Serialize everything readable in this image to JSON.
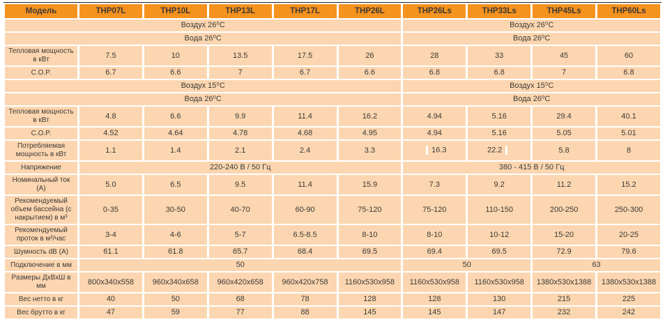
{
  "colors": {
    "header_bg": "#F6921E",
    "cell_bg": "#FBD6B0",
    "text": "#3D3935",
    "grid_gap": "#FFFFFF",
    "top_rule": "#2A241F"
  },
  "table": {
    "columns": [
      "Модель",
      "THP07L",
      "THP10L",
      "THP13L",
      "THP17L",
      "THP26L",
      "THP26Ls",
      "THP33Ls",
      "THP45Ls",
      "THP60Ls"
    ],
    "rows": [
      {
        "name": "air-26-condition",
        "cells": [
          {
            "text": "Воздух 26⁰С",
            "colspan": 6
          },
          {
            "text": "Воздух 26⁰С",
            "colspan": 4
          }
        ]
      },
      {
        "name": "water-26-condition",
        "cells": [
          {
            "text": "Вода 26⁰С",
            "colspan": 6
          },
          {
            "text": "Вода 26⁰С",
            "colspan": 4
          }
        ]
      },
      {
        "name": "heat-output-26",
        "cells": [
          {
            "text": "Тепловая мощность в кВт",
            "is_label": true
          },
          {
            "text": "7.5"
          },
          {
            "text": "10"
          },
          {
            "text": "13.5"
          },
          {
            "text": "17.5"
          },
          {
            "text": "26"
          },
          {
            "text": "28"
          },
          {
            "text": "33"
          },
          {
            "text": "45"
          },
          {
            "text": "60"
          }
        ]
      },
      {
        "name": "cop-26",
        "cells": [
          {
            "text": "C.O.P.",
            "is_label": true
          },
          {
            "text": "6.7"
          },
          {
            "text": "6.6"
          },
          {
            "text": "7"
          },
          {
            "text": "6.7"
          },
          {
            "text": "6.6"
          },
          {
            "text": "6.8"
          },
          {
            "text": "6.8"
          },
          {
            "text": "7"
          },
          {
            "text": "6.8"
          }
        ]
      },
      {
        "name": "air-15-condition",
        "cells": [
          {
            "text": "Воздух 15⁰С",
            "colspan": 6
          },
          {
            "text": "Воздух 15⁰С",
            "colspan": 4
          }
        ]
      },
      {
        "name": "water-26-condition-2",
        "cells": [
          {
            "text": "Вода 26⁰С",
            "colspan": 6
          },
          {
            "text": "Вода 26⁰С",
            "colspan": 4
          }
        ]
      },
      {
        "name": "heat-output-15",
        "cells": [
          {
            "text": "Тепловая мощность в кВт",
            "is_label": true
          },
          {
            "text": "4.8"
          },
          {
            "text": "6.6"
          },
          {
            "text": "9.9"
          },
          {
            "text": "11.4"
          },
          {
            "text": "16.2"
          },
          {
            "text": "4.94"
          },
          {
            "text": "5.16"
          },
          {
            "text": "29.4"
          },
          {
            "text": "40.1"
          }
        ]
      },
      {
        "name": "cop-15",
        "cells": [
          {
            "text": "C.O.P.",
            "is_label": true
          },
          {
            "text": "4.52"
          },
          {
            "text": "4.64"
          },
          {
            "text": "4.78"
          },
          {
            "text": "4.68"
          },
          {
            "text": "4.95"
          },
          {
            "text": "4.94"
          },
          {
            "text": "5.16"
          },
          {
            "text": "5.05"
          },
          {
            "text": "5.01"
          }
        ]
      },
      {
        "name": "power-consumption",
        "cells": [
          {
            "text": "Потребляемая мощность в кВт",
            "is_label": true
          },
          {
            "text": "1.1"
          },
          {
            "text": "1.4"
          },
          {
            "text": "2.1"
          },
          {
            "text": "2.4"
          },
          {
            "text": "3.3"
          },
          {
            "text": "16.3",
            "mark": "before"
          },
          {
            "text": "22.2",
            "mark": "after"
          },
          {
            "text": "5.8"
          },
          {
            "text": "8"
          }
        ]
      },
      {
        "name": "voltage",
        "cells": [
          {
            "text": "Напряжение",
            "is_label": true
          },
          {
            "text": "220-240 В / 50 Гц",
            "colspan": 5
          },
          {
            "text": "380 - 415 В / 50 Гц",
            "colspan": 4
          }
        ]
      },
      {
        "name": "nominal-current",
        "cells": [
          {
            "text": "Номинальный ток (А)",
            "is_label": true
          },
          {
            "text": "5.0"
          },
          {
            "text": "6.5"
          },
          {
            "text": "9.5"
          },
          {
            "text": "11.4"
          },
          {
            "text": "15.9"
          },
          {
            "text": "7.3"
          },
          {
            "text": "9.2"
          },
          {
            "text": "11.2"
          },
          {
            "text": "15.2"
          }
        ]
      },
      {
        "name": "pool-volume",
        "cells": [
          {
            "text": "Рекомендуемый объем бассейна (с накрытием) в м³",
            "is_label": true
          },
          {
            "text": "0-35"
          },
          {
            "text": "30-50"
          },
          {
            "text": "40-70"
          },
          {
            "text": "60-90"
          },
          {
            "text": "75-120"
          },
          {
            "text": "75-120"
          },
          {
            "text": "110-150"
          },
          {
            "text": "200-250"
          },
          {
            "text": "250-300"
          }
        ]
      },
      {
        "name": "flow-rate",
        "cells": [
          {
            "text": "Рекомендуемый проток в м³/час",
            "is_label": true
          },
          {
            "text": "3-4"
          },
          {
            "text": "4-6"
          },
          {
            "text": "5-7"
          },
          {
            "text": "6.5-8.5"
          },
          {
            "text": "8-10"
          },
          {
            "text": "8-10"
          },
          {
            "text": "10-12"
          },
          {
            "text": "15-20"
          },
          {
            "text": "20-25"
          }
        ]
      },
      {
        "name": "noise-level",
        "cells": [
          {
            "text": "Шумность dB (А)",
            "is_label": true
          },
          {
            "text": "61.1"
          },
          {
            "text": "61.8"
          },
          {
            "text": "65.7"
          },
          {
            "text": "68.4"
          },
          {
            "text": "69.5"
          },
          {
            "text": "69.4"
          },
          {
            "text": "69.5"
          },
          {
            "text": "72.9"
          },
          {
            "text": "79.6"
          }
        ]
      },
      {
        "name": "connection-size",
        "cells": [
          {
            "text": "Подключение в мм",
            "is_label": true
          },
          {
            "text": "50",
            "colspan": 5
          },
          {
            "text": "50",
            "colspan": 2
          },
          {
            "text": "63",
            "colspan": 2
          }
        ]
      },
      {
        "name": "dimensions",
        "cells": [
          {
            "text": "Размеры ДхВхШ в мм",
            "is_label": true
          },
          {
            "text": "800x340x558"
          },
          {
            "text": "960x340x658"
          },
          {
            "text": "960x420x658"
          },
          {
            "text": "960x420x758"
          },
          {
            "text": "1160x530x958"
          },
          {
            "text": "1160x530x958"
          },
          {
            "text": "1160x530x958"
          },
          {
            "text": "1380x530x1388"
          },
          {
            "text": "1380x530x1388"
          }
        ]
      },
      {
        "name": "net-weight",
        "cells": [
          {
            "text": "Вес нетто в кг",
            "is_label": true
          },
          {
            "text": "40"
          },
          {
            "text": "50"
          },
          {
            "text": "68"
          },
          {
            "text": "78"
          },
          {
            "text": "128"
          },
          {
            "text": "128"
          },
          {
            "text": "130"
          },
          {
            "text": "215"
          },
          {
            "text": "225"
          }
        ]
      },
      {
        "name": "gross-weight",
        "cells": [
          {
            "text": "Вес брутто в кг",
            "is_label": true
          },
          {
            "text": "47"
          },
          {
            "text": "59"
          },
          {
            "text": "77"
          },
          {
            "text": "88"
          },
          {
            "text": "145"
          },
          {
            "text": "145"
          },
          {
            "text": "147"
          },
          {
            "text": "232"
          },
          {
            "text": "242"
          }
        ]
      }
    ]
  }
}
